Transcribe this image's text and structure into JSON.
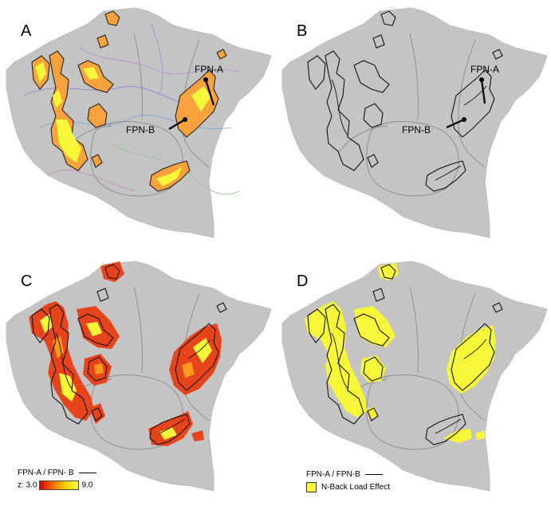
{
  "panels": [
    {
      "letter": "A",
      "labels": {
        "fpn_a": "FPN-A",
        "fpn_b": "FPN-B"
      }
    },
    {
      "letter": "B",
      "labels": {
        "fpn_a": "FPN-A",
        "fpn_b": "FPN-B"
      }
    },
    {
      "letter": "C"
    },
    {
      "letter": "D"
    }
  ],
  "legend_c": {
    "outline_label": "FPN-A / FPN- B",
    "z_label": "z:",
    "z_min": "3.0",
    "z_max": "9.0"
  },
  "legend_d": {
    "outline_label": "FPN-A / FPN-B",
    "effect_label": "N-Back Load Effect"
  },
  "colors": {
    "surface": "#c4c4c4",
    "orange": "#f7a23c",
    "yellow": "#f7f73a",
    "red": "#e8441c",
    "outline": "#111111"
  }
}
